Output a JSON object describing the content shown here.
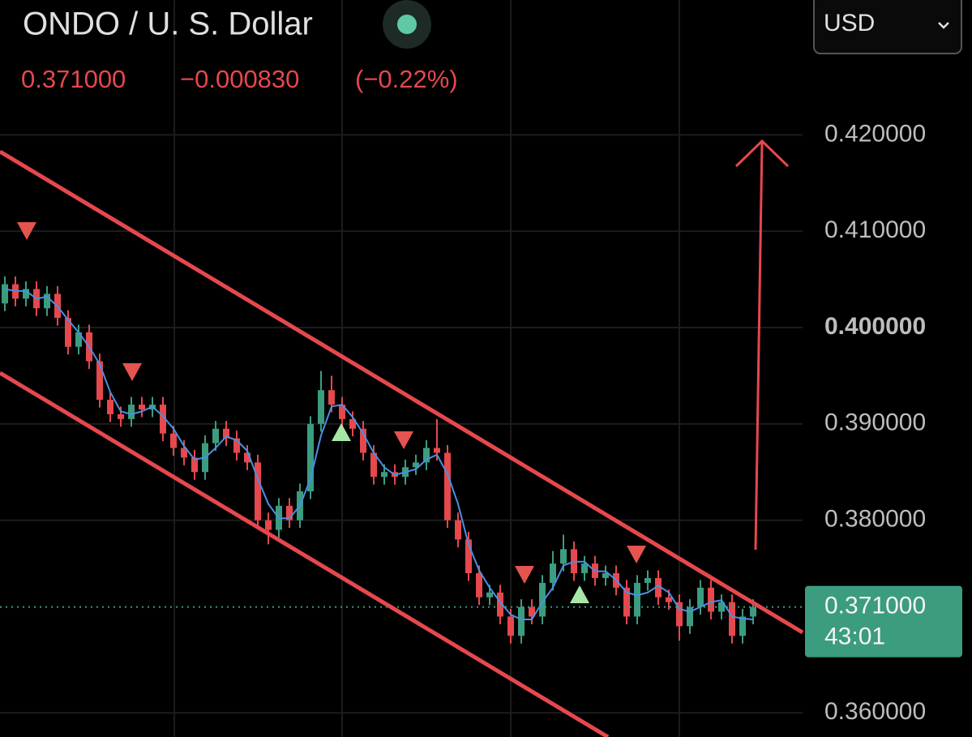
{
  "chart_data": {
    "type": "candlestick",
    "title": "ONDO / U. S. Dollar",
    "currency": "USD",
    "up_color": "#3b9c80",
    "down_color": "#e5484d",
    "open": [
      0.4025,
      0.4045,
      0.403,
      0.404,
      0.402,
      0.4035,
      0.401,
      0.398,
      0.3995,
      0.3965,
      0.3925,
      0.391,
      0.3905,
      0.392,
      0.3915,
      0.392,
      0.389,
      0.3875,
      0.3865,
      0.385,
      0.388,
      0.3895,
      0.3885,
      0.387,
      0.386,
      0.38,
      0.379,
      0.3815,
      0.38,
      0.383,
      0.39,
      0.3935,
      0.392,
      0.3905,
      0.3895,
      0.387,
      0.3845,
      0.385,
      0.3845,
      0.3855,
      0.386,
      0.3875,
      0.387,
      0.38,
      0.378,
      0.3745,
      0.372,
      0.3725,
      0.37,
      0.368,
      0.371,
      0.37,
      0.3735,
      0.3755,
      0.377,
      0.3745,
      0.3755,
      0.374,
      0.3745,
      0.373,
      0.37,
      0.3735,
      0.374,
      0.372,
      0.3715,
      0.369,
      0.371,
      0.373,
      0.3705,
      0.3715,
      0.368,
      0.37
    ],
    "high": [
      0.4053,
      0.4053,
      0.4048,
      0.4048,
      0.4043,
      0.4043,
      0.4018,
      0.4003,
      0.4003,
      0.3973,
      0.3933,
      0.3918,
      0.3928,
      0.3928,
      0.3928,
      0.3928,
      0.3898,
      0.3883,
      0.3873,
      0.3888,
      0.3903,
      0.3903,
      0.3893,
      0.3878,
      0.3868,
      0.3808,
      0.3823,
      0.3823,
      0.3838,
      0.3908,
      0.3955,
      0.395,
      0.3928,
      0.3913,
      0.3903,
      0.3878,
      0.3858,
      0.3858,
      0.3863,
      0.3868,
      0.3883,
      0.3905,
      0.3878,
      0.3808,
      0.3788,
      0.3753,
      0.3733,
      0.3733,
      0.3708,
      0.3718,
      0.3718,
      0.3743,
      0.3768,
      0.3785,
      0.3778,
      0.3763,
      0.3763,
      0.3753,
      0.3753,
      0.3738,
      0.3743,
      0.3748,
      0.3748,
      0.3728,
      0.3723,
      0.3718,
      0.3738,
      0.3738,
      0.3723,
      0.3723,
      0.3708,
      0.3718
    ],
    "low": [
      0.4017,
      0.4022,
      0.4022,
      0.4012,
      0.4012,
      0.4002,
      0.3972,
      0.3972,
      0.3957,
      0.3917,
      0.3902,
      0.3897,
      0.3897,
      0.3907,
      0.3907,
      0.3882,
      0.3867,
      0.3857,
      0.3842,
      0.3842,
      0.3872,
      0.3877,
      0.3862,
      0.3852,
      0.3792,
      0.3775,
      0.3782,
      0.3792,
      0.3792,
      0.3822,
      0.3892,
      0.3912,
      0.3897,
      0.3887,
      0.3862,
      0.3837,
      0.3837,
      0.3837,
      0.3837,
      0.3847,
      0.3852,
      0.3862,
      0.3792,
      0.3772,
      0.3737,
      0.3712,
      0.3712,
      0.3692,
      0.3672,
      0.3672,
      0.3692,
      0.3692,
      0.3727,
      0.3747,
      0.3737,
      0.3737,
      0.3732,
      0.3732,
      0.3722,
      0.3692,
      0.3692,
      0.3727,
      0.3712,
      0.3707,
      0.3675,
      0.3682,
      0.3702,
      0.3697,
      0.3697,
      0.3672,
      0.3672,
      0.3692
    ],
    "close": [
      0.4045,
      0.403,
      0.404,
      0.402,
      0.4035,
      0.401,
      0.398,
      0.3995,
      0.3965,
      0.3925,
      0.391,
      0.3905,
      0.392,
      0.3915,
      0.392,
      0.389,
      0.3875,
      0.3865,
      0.385,
      0.388,
      0.3895,
      0.3885,
      0.387,
      0.386,
      0.38,
      0.379,
      0.3815,
      0.38,
      0.383,
      0.39,
      0.3935,
      0.392,
      0.3905,
      0.3895,
      0.387,
      0.3845,
      0.385,
      0.3845,
      0.3855,
      0.386,
      0.3875,
      0.387,
      0.38,
      0.378,
      0.3745,
      0.372,
      0.3725,
      0.37,
      0.368,
      0.371,
      0.37,
      0.3735,
      0.3755,
      0.377,
      0.3745,
      0.3755,
      0.374,
      0.3745,
      0.373,
      0.37,
      0.3735,
      0.374,
      0.372,
      0.3715,
      0.369,
      0.371,
      0.373,
      0.3705,
      0.3715,
      0.368,
      0.37,
      0.371
    ],
    "ma": {
      "color": "#4a90e2",
      "values": [
        0.404,
        0.4038,
        0.4038,
        0.403,
        0.4032,
        0.4022,
        0.4008,
        0.3995,
        0.398,
        0.3962,
        0.3933,
        0.3913,
        0.391,
        0.3913,
        0.3918,
        0.3908,
        0.3895,
        0.3877,
        0.3863,
        0.3865,
        0.3875,
        0.3887,
        0.3883,
        0.3872,
        0.3843,
        0.3817,
        0.3802,
        0.3802,
        0.3815,
        0.3843,
        0.3888,
        0.3918,
        0.392,
        0.3907,
        0.389,
        0.387,
        0.3855,
        0.3847,
        0.385,
        0.3853,
        0.3863,
        0.3868,
        0.3848,
        0.3817,
        0.3775,
        0.3748,
        0.373,
        0.3715,
        0.3702,
        0.3697,
        0.3697,
        0.3715,
        0.373,
        0.3753,
        0.3757,
        0.3757,
        0.3747,
        0.3747,
        0.3738,
        0.3725,
        0.3722,
        0.3725,
        0.3732,
        0.3725,
        0.3708,
        0.3705,
        0.371,
        0.3715,
        0.3717,
        0.37,
        0.3698,
        0.3697
      ]
    },
    "last_price": {
      "value": 0.371,
      "label": "0.371000"
    },
    "change": {
      "value": -0.00083,
      "label": "−0.000830"
    },
    "change_percent": {
      "value": -0.22,
      "label": "(−0.22%)"
    },
    "countdown": "43:01",
    "ylim": [
      0.3575,
      0.434
    ],
    "yticks": [
      {
        "value": 0.36,
        "label": "0.360000"
      },
      {
        "value": 0.38,
        "label": "0.380000"
      },
      {
        "value": 0.39,
        "label": "0.390000"
      },
      {
        "value": 0.4,
        "label": "0.400000"
      },
      {
        "value": 0.41,
        "label": "0.410000"
      },
      {
        "value": 0.42,
        "label": "0.420000"
      }
    ],
    "grid": true
  }
}
